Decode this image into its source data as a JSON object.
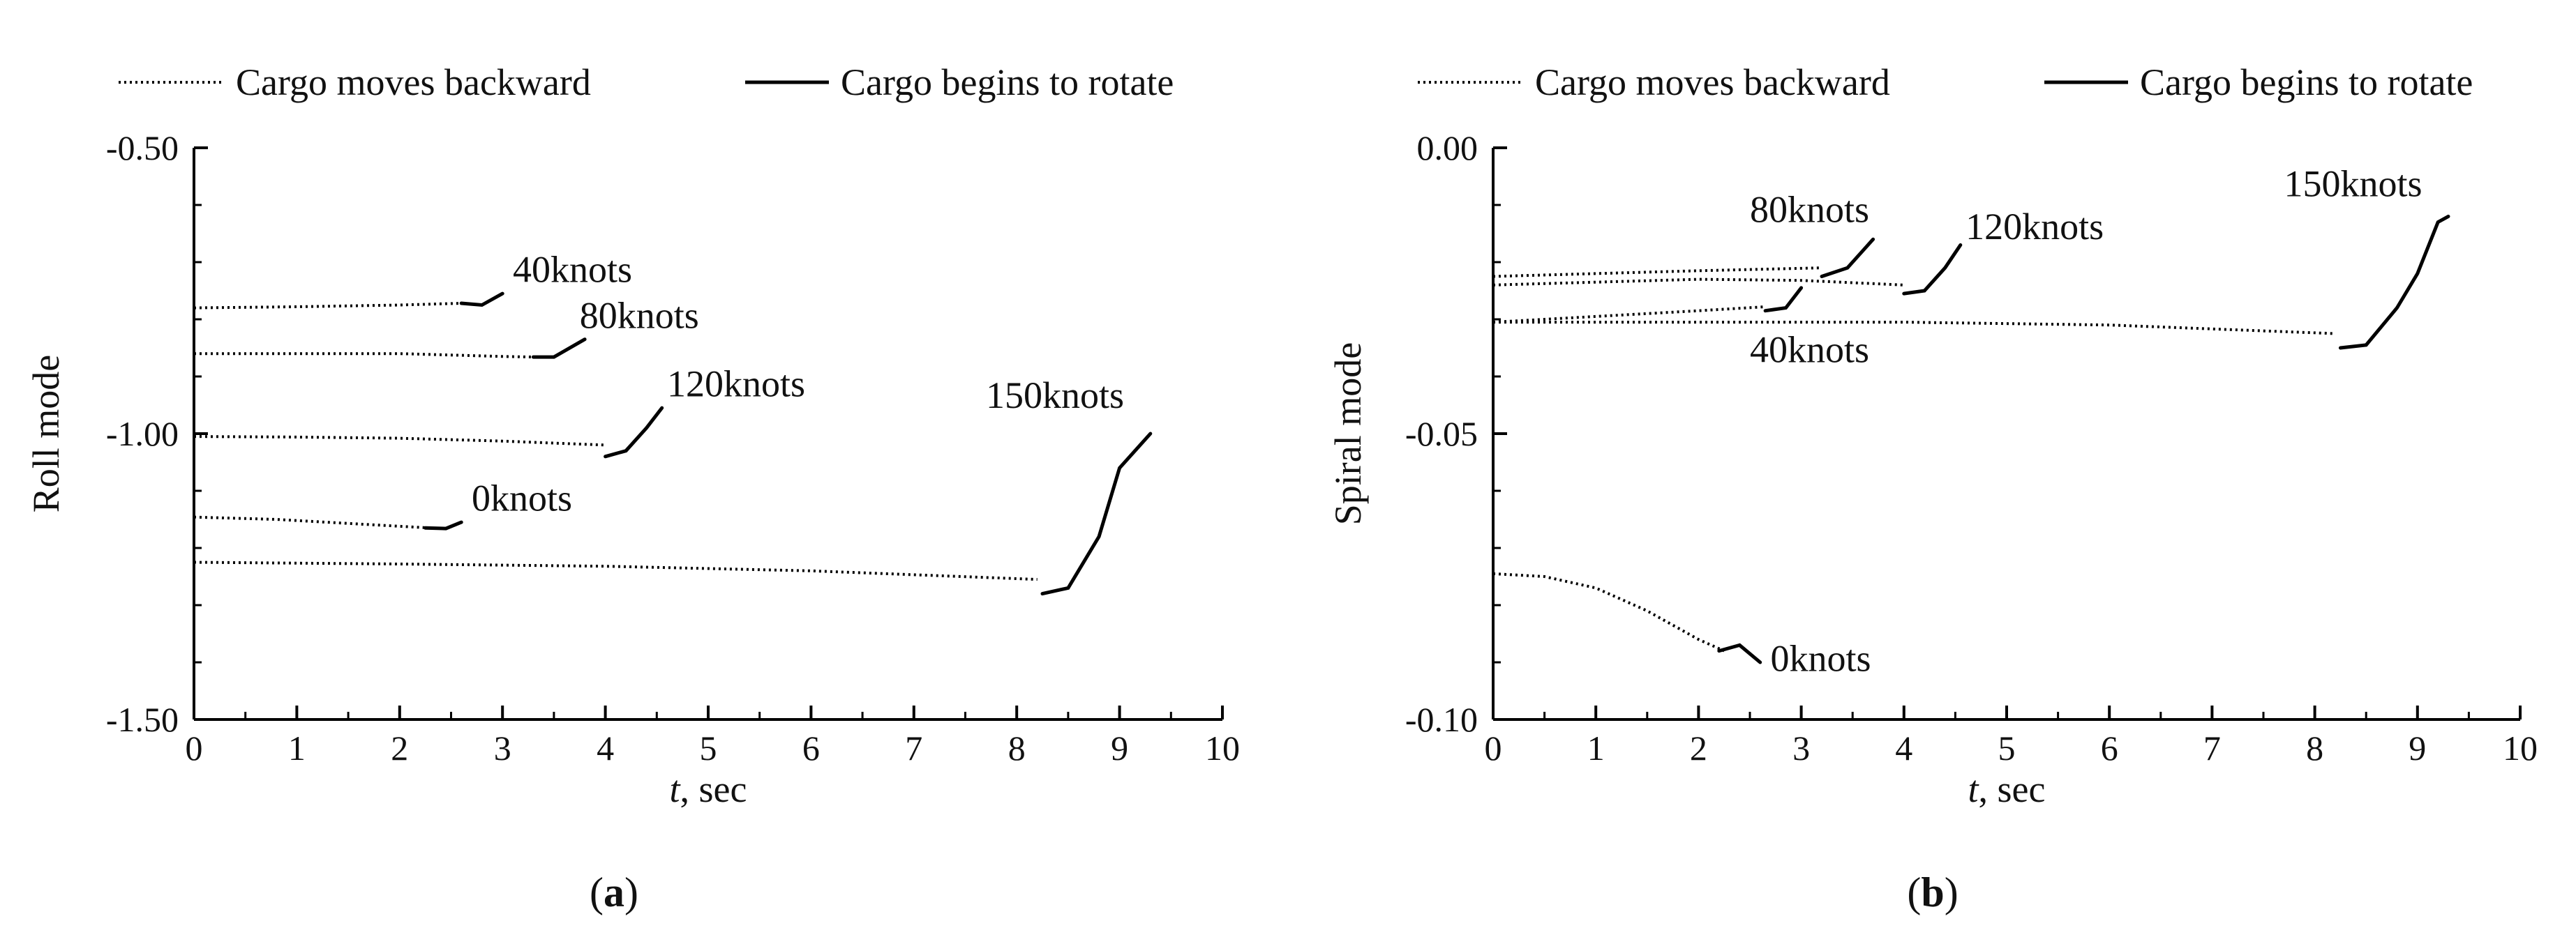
{
  "chart_data": [
    {
      "type": "line",
      "panel_label": "a",
      "xlabel_italic": "t",
      "xlabel_rest": ", sec",
      "ylabel": "Roll mode",
      "xlim": [
        0,
        10
      ],
      "ylim": [
        -1.5,
        -0.5
      ],
      "x_ticks": [
        "0",
        "1",
        "2",
        "3",
        "4",
        "5",
        "6",
        "7",
        "8",
        "9",
        "10"
      ],
      "y_ticks": [
        "-0.50",
        "-1.00",
        "-1.50"
      ],
      "legend": [
        "Cargo moves backward",
        "Cargo begins to rotate"
      ],
      "legend_position": "top",
      "series": [
        {
          "name": "0knots",
          "backward": {
            "x": [
              0,
              0.8,
              1.6,
              2.3
            ],
            "y": [
              -1.146,
              -1.15,
              -1.158,
              -1.165
            ]
          },
          "rotate": {
            "x": [
              2.25,
              2.45,
              2.6
            ],
            "y": [
              -1.165,
              -1.166,
              -1.155
            ]
          }
        },
        {
          "name": "40knots",
          "backward": {
            "x": [
              0,
              1.0,
              2.0,
              2.6
            ],
            "y": [
              -0.78,
              -0.778,
              -0.775,
              -0.772
            ]
          },
          "rotate": {
            "x": [
              2.6,
              2.8,
              3.0
            ],
            "y": [
              -0.772,
              -0.775,
              -0.755
            ]
          }
        },
        {
          "name": "80knots",
          "backward": {
            "x": [
              0,
              1.0,
              2.0,
              3.0,
              3.3
            ],
            "y": [
              -0.86,
              -0.86,
              -0.86,
              -0.865,
              -0.866
            ]
          },
          "rotate": {
            "x": [
              3.3,
              3.5,
              3.8
            ],
            "y": [
              -0.866,
              -0.866,
              -0.835
            ]
          }
        },
        {
          "name": "120knots",
          "backward": {
            "x": [
              0,
              1.0,
              2.0,
              3.0,
              4.0
            ],
            "y": [
              -1.005,
              -1.006,
              -1.008,
              -1.013,
              -1.02
            ]
          },
          "rotate": {
            "x": [
              4.0,
              4.2,
              4.4,
              4.55
            ],
            "y": [
              -1.04,
              -1.03,
              -0.99,
              -0.955
            ]
          }
        },
        {
          "name": "150knots",
          "backward": {
            "x": [
              0,
              2.0,
              4.0,
              6.0,
              8.2
            ],
            "y": [
              -1.225,
              -1.228,
              -1.232,
              -1.24,
              -1.255
            ]
          },
          "rotate": {
            "x": [
              8.25,
              8.5,
              8.8,
              9.0,
              9.3
            ],
            "y": [
              -1.28,
              -1.27,
              -1.18,
              -1.06,
              -1.0
            ]
          }
        }
      ],
      "annotations": [
        {
          "text": "40knots",
          "x": 3.1,
          "y": -0.735
        },
        {
          "text": "80knots",
          "x": 3.75,
          "y": -0.815
        },
        {
          "text": "120knots",
          "x": 4.6,
          "y": -0.935
        },
        {
          "text": "150knots",
          "x": 7.7,
          "y": -0.955
        },
        {
          "text": "0knots",
          "x": 2.7,
          "y": -1.135
        }
      ]
    },
    {
      "type": "line",
      "panel_label": "b",
      "xlabel_italic": "t",
      "xlabel_rest": ", sec",
      "ylabel": "Spiral mode",
      "xlim": [
        0,
        10
      ],
      "ylim": [
        -0.1,
        0.0
      ],
      "x_ticks": [
        "0",
        "1",
        "2",
        "3",
        "4",
        "5",
        "6",
        "7",
        "8",
        "9",
        "10"
      ],
      "y_ticks": [
        "0.00",
        "-0.05",
        "-0.10"
      ],
      "legend": [
        "Cargo moves backward",
        "Cargo begins to rotate"
      ],
      "legend_position": "top",
      "series": [
        {
          "name": "0knots",
          "backward": {
            "x": [
              0,
              0.5,
              1.0,
              1.5,
              2.0,
              2.25
            ],
            "y": [
              -0.0745,
              -0.075,
              -0.077,
              -0.081,
              -0.086,
              -0.088
            ]
          },
          "rotate": {
            "x": [
              2.2,
              2.4,
              2.6
            ],
            "y": [
              -0.088,
              -0.087,
              -0.09
            ]
          }
        },
        {
          "name": "40knots",
          "backward": {
            "x": [
              0,
              1.0,
              2.0,
              2.65
            ],
            "y": [
              -0.0305,
              -0.0295,
              -0.0285,
              -0.0278
            ]
          },
          "rotate": {
            "x": [
              2.65,
              2.85,
              3.0
            ],
            "y": [
              -0.0285,
              -0.028,
              -0.0245
            ]
          }
        },
        {
          "name": "80knots",
          "backward": {
            "x": [
              0,
              1.0,
              2.0,
              3.2
            ],
            "y": [
              -0.0225,
              -0.022,
              -0.0215,
              -0.021
            ]
          },
          "rotate": {
            "x": [
              3.2,
              3.45,
              3.7
            ],
            "y": [
              -0.0225,
              -0.021,
              -0.016
            ]
          }
        },
        {
          "name": "120knots",
          "backward": {
            "x": [
              0,
              1.0,
              2.0,
              3.0,
              4.0
            ],
            "y": [
              -0.024,
              -0.0235,
              -0.023,
              -0.0232,
              -0.024
            ]
          },
          "rotate": {
            "x": [
              4.0,
              4.2,
              4.4,
              4.55
            ],
            "y": [
              -0.0255,
              -0.025,
              -0.021,
              -0.017
            ]
          }
        },
        {
          "name": "150knots",
          "backward": {
            "x": [
              0,
              2.0,
              4.0,
              6.0,
              8.2
            ],
            "y": [
              -0.0305,
              -0.0305,
              -0.0305,
              -0.031,
              -0.0325
            ]
          },
          "rotate": {
            "x": [
              8.25,
              8.5,
              8.8,
              9.0,
              9.2,
              9.3
            ],
            "y": [
              -0.035,
              -0.0345,
              -0.028,
              -0.022,
              -0.013,
              -0.012
            ]
          }
        }
      ],
      "annotations": [
        {
          "text": "80knots",
          "x": 2.5,
          "y": -0.013
        },
        {
          "text": "120knots",
          "x": 4.6,
          "y": -0.016
        },
        {
          "text": "150knots",
          "x": 7.7,
          "y": -0.0085
        },
        {
          "text": "40knots",
          "x": 2.5,
          "y": -0.0375
        },
        {
          "text": "0knots",
          "x": 2.7,
          "y": -0.0915
        }
      ]
    }
  ]
}
